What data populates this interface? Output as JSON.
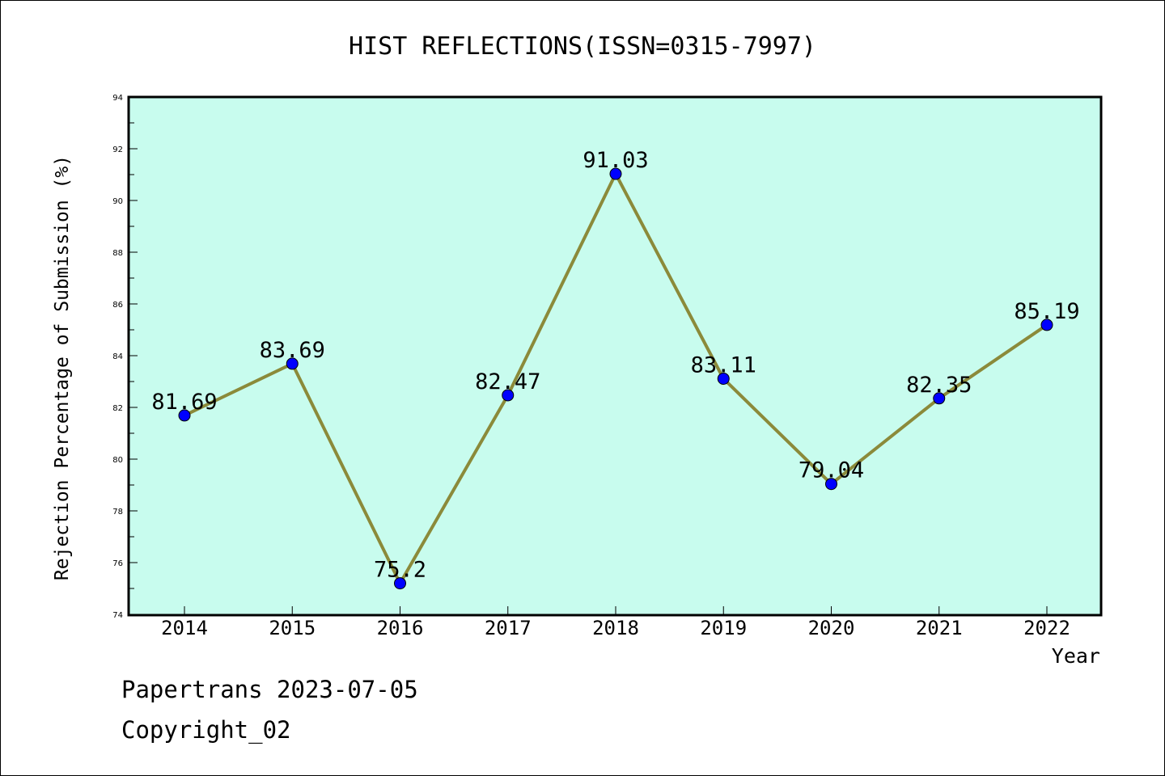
{
  "chart_data": {
    "type": "line",
    "title": "HIST REFLECTIONS(ISSN=0315-7997)",
    "xlabel": "Year",
    "ylabel": "Rejection Percentage of Submission (%)",
    "categories": [
      "2014",
      "2015",
      "2016",
      "2017",
      "2018",
      "2019",
      "2020",
      "2021",
      "2022"
    ],
    "values": [
      81.69,
      83.69,
      75.2,
      82.47,
      91.03,
      83.11,
      79.04,
      82.35,
      85.19
    ],
    "value_labels": [
      "81.69",
      "83.69",
      "75.2",
      "82.47",
      "91.03",
      "83.11",
      "79.04",
      "82.35",
      "85.19"
    ],
    "ylim": [
      74,
      94
    ],
    "yticks": [
      "74",
      "76",
      "78",
      "80",
      "82",
      "84",
      "86",
      "88",
      "90",
      "92",
      "94"
    ],
    "grid": false,
    "legend": "none",
    "colors": {
      "plot_background": "#c8fcee",
      "line": "#8b8a3a",
      "marker": "#0000ff"
    }
  },
  "footer": {
    "line1": "Papertrans 2023-07-05",
    "line2": "Copyright_02"
  }
}
